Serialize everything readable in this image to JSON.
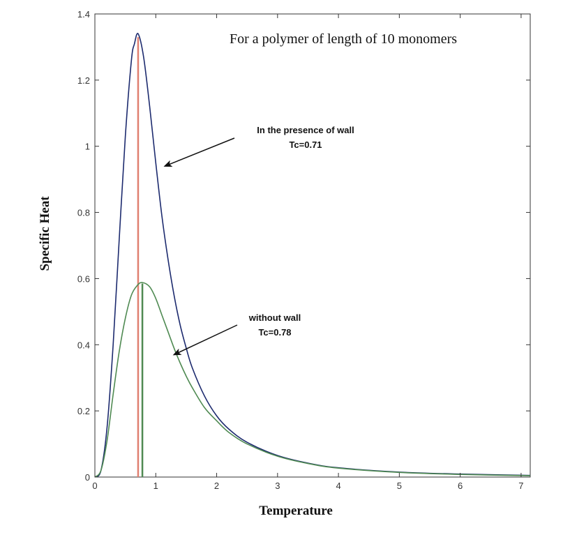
{
  "chart_data": {
    "type": "line",
    "title": "For a polymer of length of 10 monomers",
    "xlabel": "Temperature",
    "ylabel": "Specific Heat",
    "xlim": [
      0,
      7.15
    ],
    "ylim": [
      0,
      1.4
    ],
    "x_ticks": [
      0,
      1,
      2,
      3,
      4,
      5,
      6,
      7
    ],
    "y_ticks": [
      0,
      0.2,
      0.4,
      0.6,
      0.8,
      1,
      1.2,
      1.4
    ],
    "x_tick_labels": [
      "0",
      "1",
      "2",
      "3",
      "4",
      "5",
      "6",
      "7"
    ],
    "y_tick_labels": [
      "0",
      "0.2",
      "0.4",
      "0.6",
      "0.8",
      "1",
      "1.2",
      "1.4"
    ],
    "grid": false,
    "series": [
      {
        "color": "#1c2a6e",
        "x": [
          0,
          0.1,
          0.2,
          0.3,
          0.4,
          0.5,
          0.6,
          0.65,
          0.71,
          0.8,
          0.9,
          1.0,
          1.1,
          1.2,
          1.3,
          1.4,
          1.5,
          1.6,
          1.8,
          2.0,
          2.2,
          2.5,
          3.0,
          3.5,
          4.0,
          5.0,
          6.0,
          7.15
        ],
        "y": [
          0,
          0.02,
          0.15,
          0.4,
          0.72,
          1.03,
          1.26,
          1.31,
          1.34,
          1.27,
          1.12,
          0.95,
          0.79,
          0.66,
          0.55,
          0.46,
          0.39,
          0.33,
          0.245,
          0.185,
          0.145,
          0.105,
          0.065,
          0.042,
          0.028,
          0.015,
          0.009,
          0.005
        ]
      },
      {
        "color": "#4f8a52",
        "x": [
          0,
          0.1,
          0.2,
          0.3,
          0.4,
          0.5,
          0.6,
          0.7,
          0.78,
          0.9,
          1.0,
          1.1,
          1.2,
          1.3,
          1.4,
          1.5,
          1.6,
          1.8,
          2.0,
          2.2,
          2.5,
          3.0,
          3.5,
          4.0,
          5.0,
          6.0,
          7.15
        ],
        "y": [
          0,
          0.02,
          0.11,
          0.25,
          0.38,
          0.48,
          0.55,
          0.58,
          0.588,
          0.575,
          0.54,
          0.49,
          0.44,
          0.39,
          0.345,
          0.305,
          0.27,
          0.21,
          0.17,
          0.135,
          0.1,
          0.063,
          0.041,
          0.027,
          0.014,
          0.008,
          0.004
        ]
      }
    ],
    "vlines": [
      {
        "x": 0.71,
        "color": "#e08070"
      },
      {
        "x": 0.78,
        "color": "#4f8a52"
      }
    ],
    "annotations": [
      {
        "lines": [
          "In the presence of wall",
          "Tc=0.71"
        ],
        "arrow_to": [
          1.15,
          0.94
        ]
      },
      {
        "lines": [
          "without wall",
          "Tc=0.78"
        ],
        "arrow_to": [
          1.3,
          0.37
        ]
      }
    ]
  }
}
